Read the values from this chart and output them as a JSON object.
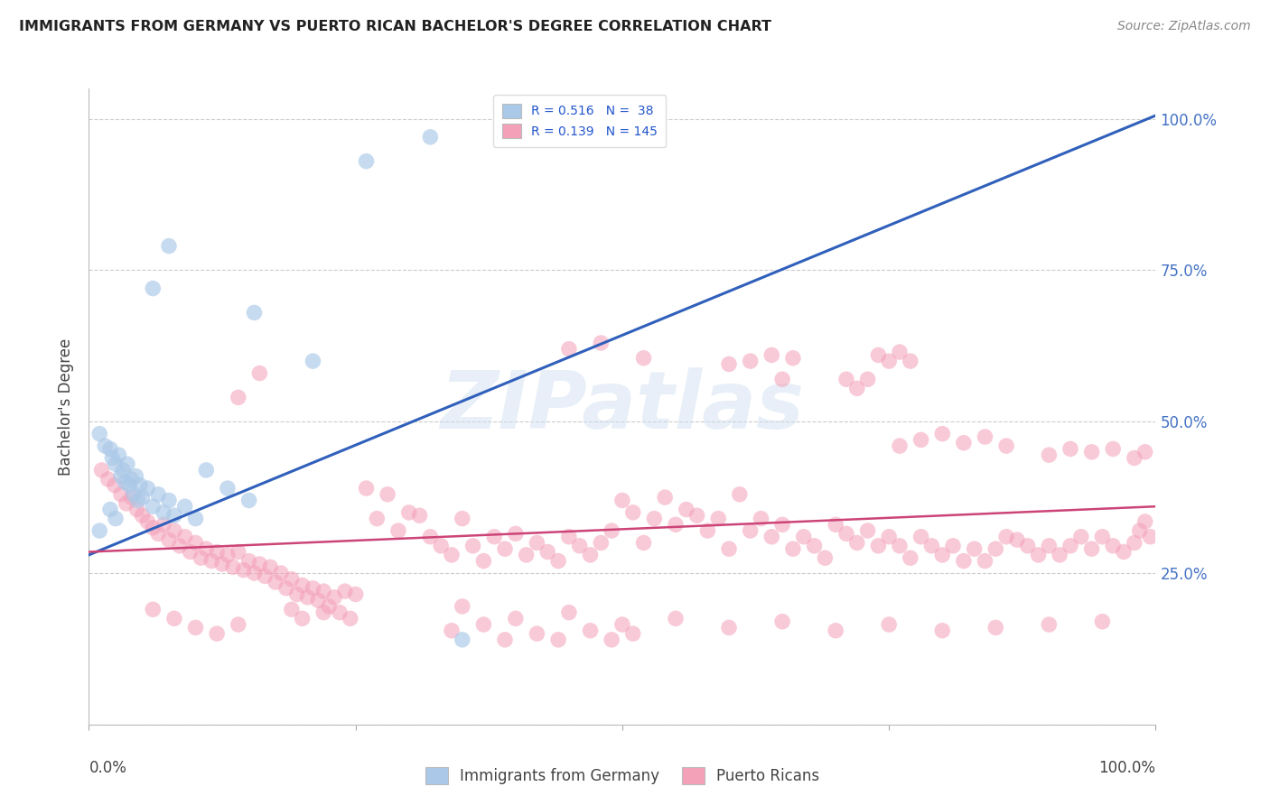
{
  "title": "IMMIGRANTS FROM GERMANY VS PUERTO RICAN BACHELOR'S DEGREE CORRELATION CHART",
  "source": "Source: ZipAtlas.com",
  "ylabel": "Bachelor's Degree",
  "watermark": "ZIPatlas",
  "blue_color": "#aac8e8",
  "pink_color": "#f4a0b8",
  "blue_line_color": "#3060bb",
  "pink_line_color": "#cc4477",
  "blue_scatter": [
    [
      0.01,
      0.48
    ],
    [
      0.015,
      0.46
    ],
    [
      0.02,
      0.455
    ],
    [
      0.022,
      0.44
    ],
    [
      0.025,
      0.43
    ],
    [
      0.028,
      0.445
    ],
    [
      0.03,
      0.41
    ],
    [
      0.032,
      0.42
    ],
    [
      0.034,
      0.4
    ],
    [
      0.036,
      0.43
    ],
    [
      0.038,
      0.395
    ],
    [
      0.04,
      0.405
    ],
    [
      0.042,
      0.38
    ],
    [
      0.044,
      0.41
    ],
    [
      0.046,
      0.37
    ],
    [
      0.048,
      0.395
    ],
    [
      0.05,
      0.375
    ],
    [
      0.055,
      0.39
    ],
    [
      0.06,
      0.36
    ],
    [
      0.065,
      0.38
    ],
    [
      0.07,
      0.35
    ],
    [
      0.075,
      0.37
    ],
    [
      0.08,
      0.345
    ],
    [
      0.09,
      0.36
    ],
    [
      0.1,
      0.34
    ],
    [
      0.11,
      0.42
    ],
    [
      0.13,
      0.39
    ],
    [
      0.15,
      0.37
    ],
    [
      0.06,
      0.72
    ],
    [
      0.075,
      0.79
    ],
    [
      0.155,
      0.68
    ],
    [
      0.21,
      0.6
    ],
    [
      0.26,
      0.93
    ],
    [
      0.32,
      0.97
    ],
    [
      0.35,
      0.14
    ],
    [
      0.01,
      0.32
    ],
    [
      0.02,
      0.355
    ],
    [
      0.025,
      0.34
    ]
  ],
  "pink_scatter": [
    [
      0.012,
      0.42
    ],
    [
      0.018,
      0.405
    ],
    [
      0.024,
      0.395
    ],
    [
      0.03,
      0.38
    ],
    [
      0.035,
      0.365
    ],
    [
      0.04,
      0.375
    ],
    [
      0.045,
      0.355
    ],
    [
      0.05,
      0.345
    ],
    [
      0.055,
      0.335
    ],
    [
      0.06,
      0.325
    ],
    [
      0.065,
      0.315
    ],
    [
      0.07,
      0.33
    ],
    [
      0.075,
      0.305
    ],
    [
      0.08,
      0.32
    ],
    [
      0.085,
      0.295
    ],
    [
      0.09,
      0.31
    ],
    [
      0.095,
      0.285
    ],
    [
      0.1,
      0.3
    ],
    [
      0.105,
      0.275
    ],
    [
      0.11,
      0.29
    ],
    [
      0.115,
      0.27
    ],
    [
      0.12,
      0.285
    ],
    [
      0.125,
      0.265
    ],
    [
      0.13,
      0.28
    ],
    [
      0.135,
      0.26
    ],
    [
      0.14,
      0.285
    ],
    [
      0.145,
      0.255
    ],
    [
      0.15,
      0.27
    ],
    [
      0.155,
      0.25
    ],
    [
      0.16,
      0.265
    ],
    [
      0.165,
      0.245
    ],
    [
      0.17,
      0.26
    ],
    [
      0.175,
      0.235
    ],
    [
      0.18,
      0.25
    ],
    [
      0.185,
      0.225
    ],
    [
      0.19,
      0.24
    ],
    [
      0.195,
      0.215
    ],
    [
      0.2,
      0.23
    ],
    [
      0.205,
      0.21
    ],
    [
      0.21,
      0.225
    ],
    [
      0.215,
      0.205
    ],
    [
      0.22,
      0.22
    ],
    [
      0.225,
      0.195
    ],
    [
      0.23,
      0.21
    ],
    [
      0.235,
      0.185
    ],
    [
      0.24,
      0.22
    ],
    [
      0.245,
      0.175
    ],
    [
      0.25,
      0.215
    ],
    [
      0.26,
      0.39
    ],
    [
      0.27,
      0.34
    ],
    [
      0.28,
      0.38
    ],
    [
      0.29,
      0.32
    ],
    [
      0.3,
      0.35
    ],
    [
      0.31,
      0.345
    ],
    [
      0.32,
      0.31
    ],
    [
      0.33,
      0.295
    ],
    [
      0.34,
      0.28
    ],
    [
      0.35,
      0.34
    ],
    [
      0.36,
      0.295
    ],
    [
      0.37,
      0.27
    ],
    [
      0.38,
      0.31
    ],
    [
      0.39,
      0.29
    ],
    [
      0.4,
      0.315
    ],
    [
      0.41,
      0.28
    ],
    [
      0.42,
      0.3
    ],
    [
      0.43,
      0.285
    ],
    [
      0.44,
      0.27
    ],
    [
      0.45,
      0.31
    ],
    [
      0.46,
      0.295
    ],
    [
      0.47,
      0.28
    ],
    [
      0.48,
      0.3
    ],
    [
      0.49,
      0.32
    ],
    [
      0.5,
      0.37
    ],
    [
      0.51,
      0.35
    ],
    [
      0.52,
      0.3
    ],
    [
      0.53,
      0.34
    ],
    [
      0.54,
      0.375
    ],
    [
      0.55,
      0.33
    ],
    [
      0.56,
      0.355
    ],
    [
      0.57,
      0.345
    ],
    [
      0.58,
      0.32
    ],
    [
      0.59,
      0.34
    ],
    [
      0.6,
      0.29
    ],
    [
      0.61,
      0.38
    ],
    [
      0.62,
      0.32
    ],
    [
      0.63,
      0.34
    ],
    [
      0.64,
      0.31
    ],
    [
      0.65,
      0.33
    ],
    [
      0.66,
      0.29
    ],
    [
      0.67,
      0.31
    ],
    [
      0.68,
      0.295
    ],
    [
      0.69,
      0.275
    ],
    [
      0.7,
      0.33
    ],
    [
      0.71,
      0.315
    ],
    [
      0.72,
      0.3
    ],
    [
      0.73,
      0.32
    ],
    [
      0.74,
      0.295
    ],
    [
      0.75,
      0.31
    ],
    [
      0.76,
      0.295
    ],
    [
      0.77,
      0.275
    ],
    [
      0.78,
      0.31
    ],
    [
      0.79,
      0.295
    ],
    [
      0.8,
      0.28
    ],
    [
      0.81,
      0.295
    ],
    [
      0.82,
      0.27
    ],
    [
      0.83,
      0.29
    ],
    [
      0.84,
      0.27
    ],
    [
      0.85,
      0.29
    ],
    [
      0.86,
      0.31
    ],
    [
      0.87,
      0.305
    ],
    [
      0.88,
      0.295
    ],
    [
      0.89,
      0.28
    ],
    [
      0.9,
      0.295
    ],
    [
      0.91,
      0.28
    ],
    [
      0.92,
      0.295
    ],
    [
      0.93,
      0.31
    ],
    [
      0.94,
      0.29
    ],
    [
      0.95,
      0.31
    ],
    [
      0.96,
      0.295
    ],
    [
      0.97,
      0.285
    ],
    [
      0.98,
      0.3
    ],
    [
      0.985,
      0.32
    ],
    [
      0.99,
      0.335
    ],
    [
      0.995,
      0.31
    ],
    [
      0.14,
      0.54
    ],
    [
      0.16,
      0.58
    ],
    [
      0.45,
      0.62
    ],
    [
      0.48,
      0.63
    ],
    [
      0.52,
      0.605
    ],
    [
      0.6,
      0.595
    ],
    [
      0.62,
      0.6
    ],
    [
      0.64,
      0.61
    ],
    [
      0.65,
      0.57
    ],
    [
      0.66,
      0.605
    ],
    [
      0.71,
      0.57
    ],
    [
      0.72,
      0.555
    ],
    [
      0.73,
      0.57
    ],
    [
      0.74,
      0.61
    ],
    [
      0.75,
      0.6
    ],
    [
      0.76,
      0.615
    ],
    [
      0.77,
      0.6
    ],
    [
      0.76,
      0.46
    ],
    [
      0.78,
      0.47
    ],
    [
      0.8,
      0.48
    ],
    [
      0.82,
      0.465
    ],
    [
      0.84,
      0.475
    ],
    [
      0.86,
      0.46
    ],
    [
      0.9,
      0.445
    ],
    [
      0.92,
      0.455
    ],
    [
      0.94,
      0.45
    ],
    [
      0.96,
      0.455
    ],
    [
      0.98,
      0.44
    ],
    [
      0.99,
      0.45
    ],
    [
      0.35,
      0.195
    ],
    [
      0.4,
      0.175
    ],
    [
      0.45,
      0.185
    ],
    [
      0.5,
      0.165
    ],
    [
      0.55,
      0.175
    ],
    [
      0.6,
      0.16
    ],
    [
      0.65,
      0.17
    ],
    [
      0.7,
      0.155
    ],
    [
      0.75,
      0.165
    ],
    [
      0.8,
      0.155
    ],
    [
      0.85,
      0.16
    ],
    [
      0.9,
      0.165
    ],
    [
      0.95,
      0.17
    ],
    [
      0.34,
      0.155
    ],
    [
      0.37,
      0.165
    ],
    [
      0.39,
      0.14
    ],
    [
      0.42,
      0.15
    ],
    [
      0.44,
      0.14
    ],
    [
      0.47,
      0.155
    ],
    [
      0.49,
      0.14
    ],
    [
      0.51,
      0.15
    ],
    [
      0.06,
      0.19
    ],
    [
      0.08,
      0.175
    ],
    [
      0.1,
      0.16
    ],
    [
      0.12,
      0.15
    ],
    [
      0.14,
      0.165
    ],
    [
      0.19,
      0.19
    ],
    [
      0.2,
      0.175
    ],
    [
      0.22,
      0.185
    ]
  ],
  "blue_trendline_x": [
    0.0,
    1.02
  ],
  "blue_trendline_y": [
    0.28,
    1.02
  ],
  "pink_trendline_x": [
    0.0,
    1.0
  ],
  "pink_trendline_y": [
    0.285,
    0.36
  ],
  "xlim": [
    0.0,
    1.0
  ],
  "ylim": [
    0.0,
    1.05
  ],
  "right_yticks": [
    0.25,
    0.5,
    0.75,
    1.0
  ],
  "right_yticklabels": [
    "25.0%",
    "50.0%",
    "75.0%",
    "100.0%"
  ],
  "bottom_legend_labels": [
    "Immigrants from Germany",
    "Puerto Ricans"
  ]
}
